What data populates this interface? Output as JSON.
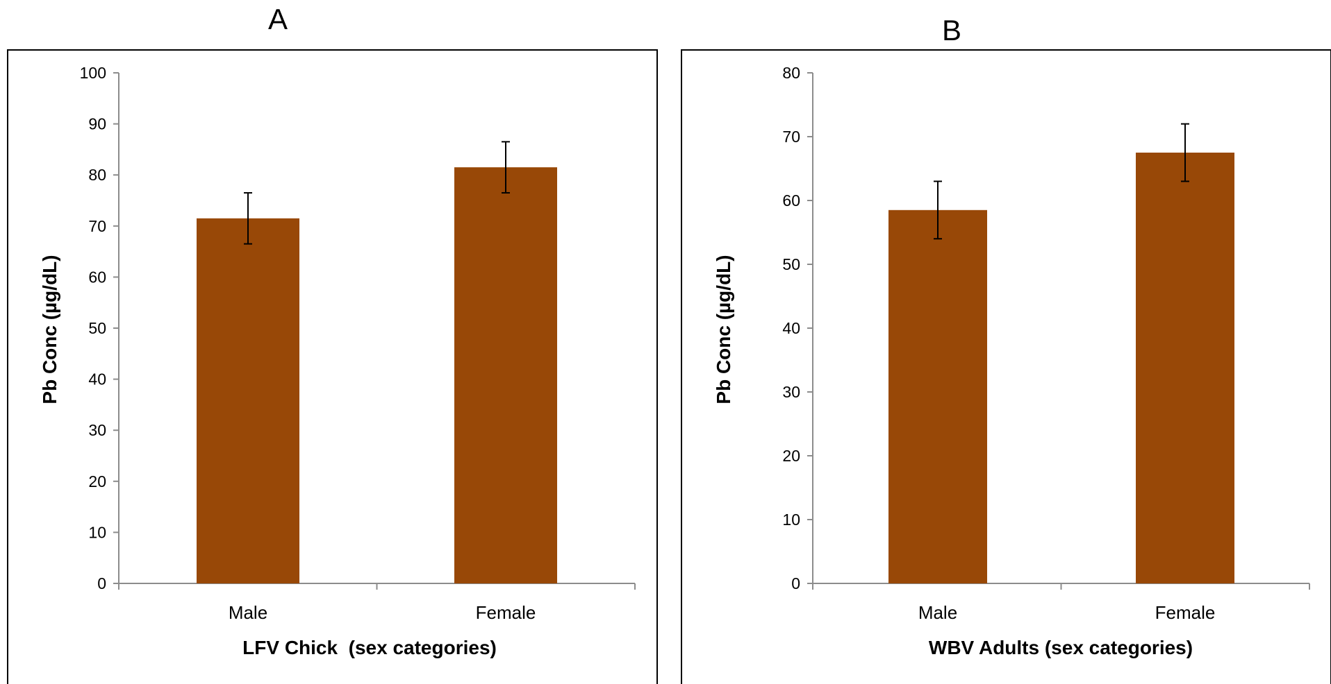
{
  "chart_data": [
    {
      "type": "bar",
      "panel": "A",
      "categories": [
        "Male",
        "Female"
      ],
      "values": [
        71.5,
        81.5
      ],
      "errors": [
        5,
        5
      ],
      "xlabel": "LFV Chick  (sex categories)",
      "ylabel": "Pb Conc (µg/dL)",
      "ylim": [
        0,
        100
      ],
      "yticks": [
        0,
        10,
        20,
        30,
        40,
        50,
        60,
        70,
        80,
        90,
        100
      ],
      "bar_color": "#984807",
      "grid": false,
      "legend": "none"
    },
    {
      "type": "bar",
      "panel": "B",
      "categories": [
        "Male",
        "Female"
      ],
      "values": [
        58.5,
        67.5
      ],
      "errors": [
        4.5,
        4.5
      ],
      "xlabel": "WBV Adults (sex categories)",
      "ylabel": "Pb Conc (µg/dL)",
      "ylim": [
        0,
        80
      ],
      "yticks": [
        0,
        10,
        20,
        30,
        40,
        50,
        60,
        70,
        80
      ],
      "bar_color": "#984807",
      "grid": false,
      "legend": "none"
    }
  ]
}
